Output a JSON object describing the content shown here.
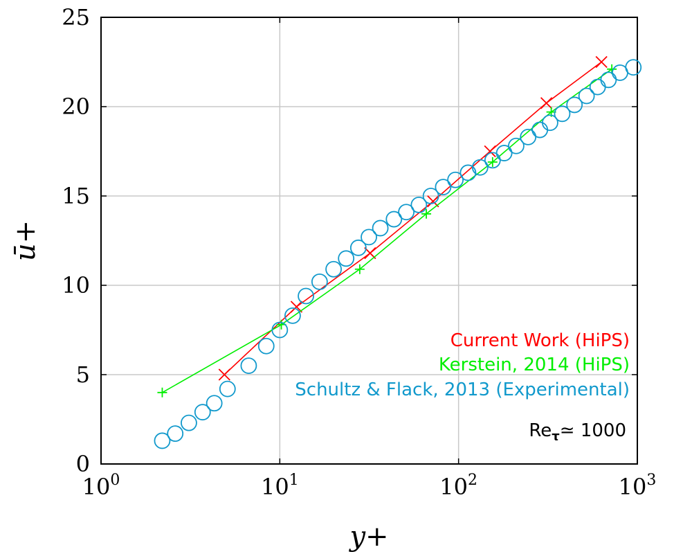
{
  "chart_data": {
    "type": "scatter",
    "title": "",
    "xlabel": "y+",
    "ylabel": "ū+",
    "xscale": "log",
    "xlim": [
      1,
      1000
    ],
    "ylim": [
      0,
      25
    ],
    "x_ticks": [
      {
        "value": 1,
        "base": "10",
        "exp": "0"
      },
      {
        "value": 10,
        "base": "10",
        "exp": "1"
      },
      {
        "value": 100,
        "base": "10",
        "exp": "2"
      },
      {
        "value": 1000,
        "base": "10",
        "exp": "3"
      }
    ],
    "y_ticks": [
      {
        "value": 0,
        "label": "0"
      },
      {
        "value": 5,
        "label": "5"
      },
      {
        "value": 10,
        "label": "10"
      },
      {
        "value": 15,
        "label": "15"
      },
      {
        "value": 20,
        "label": "20"
      },
      {
        "value": 25,
        "label": "25"
      }
    ],
    "grid": true,
    "legend_position": "bottom-right",
    "series": [
      {
        "name": "Current Work (HiPS)",
        "color": "#ff0000",
        "marker": "x",
        "line": true,
        "points": [
          [
            4.9,
            5.0
          ],
          [
            12.4,
            8.8
          ],
          [
            32.0,
            11.8
          ],
          [
            72.0,
            14.7
          ],
          [
            150,
            17.5
          ],
          [
            310,
            20.2
          ],
          [
            630,
            22.5
          ]
        ]
      },
      {
        "name": "Kerstein, 2014 (HiPS)",
        "color": "#00ee00",
        "marker": "plus",
        "line": true,
        "points": [
          [
            2.2,
            4.0
          ],
          [
            10.2,
            7.8
          ],
          [
            28.0,
            10.9
          ],
          [
            66.0,
            14.0
          ],
          [
            155,
            16.9
          ],
          [
            330,
            19.7
          ],
          [
            720,
            22.1
          ]
        ]
      },
      {
        "name": "Schultz & Flack, 2013 (Experimental)",
        "color": "#1199cc",
        "marker": "circle",
        "line": false,
        "points": [
          [
            2.2,
            1.3
          ],
          [
            2.6,
            1.7
          ],
          [
            3.1,
            2.3
          ],
          [
            3.7,
            2.9
          ],
          [
            4.3,
            3.4
          ],
          [
            5.1,
            4.2
          ],
          [
            6.7,
            5.5
          ],
          [
            8.4,
            6.6
          ],
          [
            10.0,
            7.5
          ],
          [
            11.8,
            8.3
          ],
          [
            14.0,
            9.4
          ],
          [
            16.7,
            10.2
          ],
          [
            20.0,
            10.9
          ],
          [
            23.5,
            11.5
          ],
          [
            27.5,
            12.1
          ],
          [
            31.5,
            12.7
          ],
          [
            36.5,
            13.2
          ],
          [
            43.5,
            13.7
          ],
          [
            51.0,
            14.1
          ],
          [
            60.0,
            14.5
          ],
          [
            70.0,
            15.0
          ],
          [
            82.0,
            15.5
          ],
          [
            96.0,
            15.9
          ],
          [
            113,
            16.3
          ],
          [
            132,
            16.6
          ],
          [
            155,
            17.0
          ],
          [
            180,
            17.4
          ],
          [
            210,
            17.8
          ],
          [
            245,
            18.3
          ],
          [
            285,
            18.7
          ],
          [
            325,
            19.1
          ],
          [
            380,
            19.6
          ],
          [
            445,
            20.1
          ],
          [
            520,
            20.6
          ],
          [
            600,
            21.1
          ],
          [
            690,
            21.5
          ],
          [
            800,
            21.9
          ],
          [
            950,
            22.2
          ]
        ]
      }
    ],
    "annotation": {
      "prefix": "Re",
      "subscript": "τ",
      "suffix": "≃ 1000"
    }
  }
}
